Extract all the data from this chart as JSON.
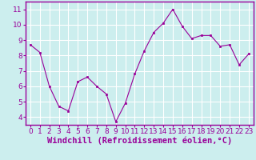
{
  "x": [
    0,
    1,
    2,
    3,
    4,
    5,
    6,
    7,
    8,
    9,
    10,
    11,
    12,
    13,
    14,
    15,
    16,
    17,
    18,
    19,
    20,
    21,
    22,
    23
  ],
  "y": [
    8.7,
    8.2,
    6.0,
    4.7,
    4.4,
    6.3,
    6.6,
    6.0,
    5.5,
    3.7,
    4.9,
    6.8,
    8.3,
    9.5,
    10.1,
    11.0,
    9.9,
    9.1,
    9.3,
    9.3,
    8.6,
    8.7,
    7.4,
    8.1
  ],
  "line_color": "#990099",
  "marker_color": "#990099",
  "bg_color": "#cceeee",
  "grid_color": "#ffffff",
  "xlabel": "Windchill (Refroidissement éolien,°C)",
  "xlabel_color": "#990099",
  "tick_color": "#990099",
  "spine_color": "#990099",
  "ylim": [
    3.5,
    11.5
  ],
  "xlim": [
    -0.5,
    23.5
  ],
  "yticks": [
    4,
    5,
    6,
    7,
    8,
    9,
    10,
    11
  ],
  "xticks": [
    0,
    1,
    2,
    3,
    4,
    5,
    6,
    7,
    8,
    9,
    10,
    11,
    12,
    13,
    14,
    15,
    16,
    17,
    18,
    19,
    20,
    21,
    22,
    23
  ],
  "tick_fontsize": 6.5,
  "xlabel_fontsize": 7.5
}
